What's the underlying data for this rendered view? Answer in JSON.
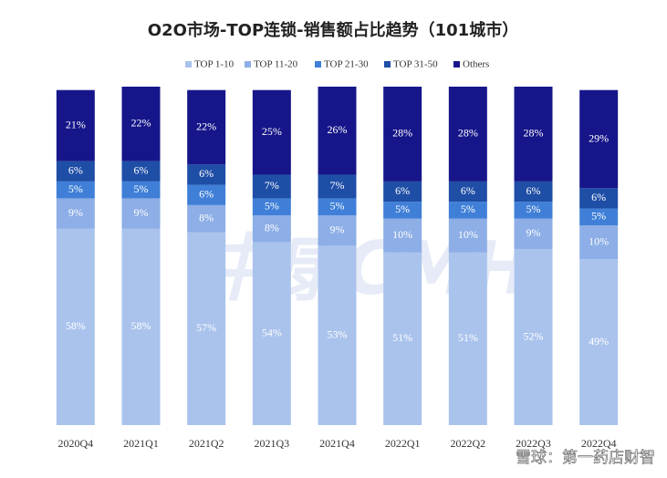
{
  "chart_data": {
    "type": "stacked-bar",
    "title": "O2O市场-TOP连锁-销售额占比趋势（101城市）",
    "categories": [
      "2020Q4",
      "2021Q1",
      "2021Q2",
      "2021Q3",
      "2021Q4",
      "2022Q1",
      "2022Q2",
      "2022Q3",
      "2022Q4"
    ],
    "series": [
      {
        "name": "TOP 1-10",
        "color": "#a9c3ec",
        "values": [
          58,
          58,
          57,
          54,
          53,
          51,
          51,
          52,
          49
        ],
        "value_labels": [
          "58%",
          "58%",
          "57%",
          "54%",
          "53%",
          "51%",
          "51%",
          "52%",
          "49%"
        ]
      },
      {
        "name": "TOP 11-20",
        "color": "#8daee6",
        "values": [
          9,
          9,
          8,
          8,
          9,
          10,
          10,
          9,
          10
        ],
        "value_labels": [
          "9%",
          "9%",
          "8%",
          "8%",
          "9%",
          "10%",
          "10%",
          "9%",
          "10%"
        ]
      },
      {
        "name": "TOP 21-30",
        "color": "#3f7fd7",
        "values": [
          5,
          5,
          6,
          5,
          5,
          5,
          5,
          5,
          5
        ],
        "value_labels": [
          "5%",
          "5%",
          "6%",
          "5%",
          "5%",
          "5%",
          "5%",
          "5%",
          "5%"
        ]
      },
      {
        "name": "TOP 31-50",
        "color": "#1f4ea6",
        "values": [
          6,
          6,
          6,
          7,
          7,
          6,
          6,
          6,
          6
        ],
        "value_labels": [
          "6%",
          "6%",
          "6%",
          "7%",
          "7%",
          "6%",
          "6%",
          "6%",
          "6%"
        ]
      },
      {
        "name": "Others",
        "color": "#16168a",
        "values": [
          21,
          22,
          22,
          25,
          26,
          28,
          28,
          28,
          29
        ],
        "value_labels": [
          "21%",
          "22%",
          "22%",
          "25%",
          "26%",
          "28%",
          "28%",
          "28%",
          "29%"
        ]
      }
    ],
    "ylim": [
      0,
      100
    ],
    "legend": "top",
    "annotations": [
      "中康CMH",
      "雪球：第一药店财智"
    ]
  }
}
